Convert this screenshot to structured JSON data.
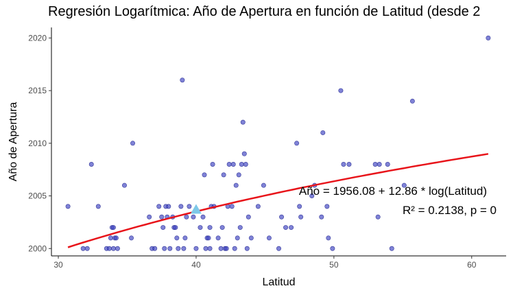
{
  "chart_data": {
    "type": "scatter",
    "title": "Regresión Logarítmica: Año de Apertura en función de Latitud (desde 2",
    "xlabel": "Latitud",
    "ylabel": "Año de Apertura",
    "xlim": [
      29.5,
      62.5
    ],
    "ylim": [
      1999.3,
      2021.0
    ],
    "x_ticks": [
      30,
      40,
      50,
      60
    ],
    "y_ticks": [
      2000,
      2005,
      2010,
      2015,
      2020
    ],
    "grid": false,
    "point_color": "#3A3FC0",
    "line_color": "#E8141A",
    "marker_color": "#7EC8E8",
    "points": [
      [
        30.7,
        2004
      ],
      [
        31.8,
        2000
      ],
      [
        32.1,
        2000
      ],
      [
        32.4,
        2008
      ],
      [
        32.9,
        2004
      ],
      [
        33.5,
        2000
      ],
      [
        33.7,
        2000
      ],
      [
        33.8,
        2001
      ],
      [
        33.9,
        2002
      ],
      [
        34.0,
        2002
      ],
      [
        34.0,
        2000
      ],
      [
        34.1,
        2001
      ],
      [
        34.2,
        2001
      ],
      [
        34.3,
        2000
      ],
      [
        34.8,
        2006
      ],
      [
        35.3,
        2001
      ],
      [
        35.4,
        2010
      ],
      [
        36.6,
        2003
      ],
      [
        36.8,
        2000
      ],
      [
        37.0,
        2000
      ],
      [
        37.3,
        2004
      ],
      [
        37.5,
        2003
      ],
      [
        37.6,
        2002
      ],
      [
        37.7,
        2000
      ],
      [
        37.8,
        2004
      ],
      [
        37.9,
        2003
      ],
      [
        38.0,
        2004
      ],
      [
        38.1,
        2000
      ],
      [
        38.3,
        2003
      ],
      [
        38.4,
        2002
      ],
      [
        38.5,
        2002
      ],
      [
        38.6,
        2001
      ],
      [
        38.7,
        2000
      ],
      [
        38.9,
        2004
      ],
      [
        39.0,
        2016
      ],
      [
        39.1,
        2000
      ],
      [
        39.2,
        2001
      ],
      [
        39.3,
        2003
      ],
      [
        39.5,
        2004
      ],
      [
        39.8,
        2003
      ],
      [
        40.0,
        2000
      ],
      [
        40.3,
        2002
      ],
      [
        40.5,
        2003
      ],
      [
        40.6,
        2007
      ],
      [
        40.7,
        2000
      ],
      [
        40.8,
        2001
      ],
      [
        40.9,
        2001
      ],
      [
        41.0,
        2000
      ],
      [
        41.0,
        2002
      ],
      [
        41.1,
        2004
      ],
      [
        41.2,
        2008
      ],
      [
        41.3,
        2004
      ],
      [
        41.6,
        2001
      ],
      [
        41.8,
        2000
      ],
      [
        41.9,
        2002
      ],
      [
        42.0,
        2007
      ],
      [
        42.1,
        2000
      ],
      [
        42.2,
        2000
      ],
      [
        42.3,
        2004
      ],
      [
        42.4,
        2008
      ],
      [
        42.6,
        2004
      ],
      [
        42.7,
        2008
      ],
      [
        42.8,
        2000
      ],
      [
        42.9,
        2006
      ],
      [
        43.0,
        2001
      ],
      [
        43.1,
        2007
      ],
      [
        43.2,
        2002
      ],
      [
        43.3,
        2008
      ],
      [
        43.4,
        2012
      ],
      [
        43.5,
        2009
      ],
      [
        43.6,
        2008
      ],
      [
        43.7,
        2000
      ],
      [
        43.8,
        2003
      ],
      [
        44.0,
        2001
      ],
      [
        44.5,
        2004
      ],
      [
        44.9,
        2006
      ],
      [
        45.3,
        2001
      ],
      [
        46.0,
        2000
      ],
      [
        46.2,
        2003
      ],
      [
        46.5,
        2002
      ],
      [
        46.9,
        2002
      ],
      [
        47.3,
        2010
      ],
      [
        47.5,
        2004
      ],
      [
        47.6,
        2003
      ],
      [
        48.4,
        2005
      ],
      [
        48.6,
        2006
      ],
      [
        49.1,
        2003
      ],
      [
        49.2,
        2011
      ],
      [
        49.5,
        2004
      ],
      [
        49.6,
        2001
      ],
      [
        49.9,
        2000
      ],
      [
        50.5,
        2015
      ],
      [
        50.7,
        2008
      ],
      [
        51.1,
        2008
      ],
      [
        53.0,
        2008
      ],
      [
        53.2,
        2003
      ],
      [
        53.3,
        2008
      ],
      [
        53.9,
        2008
      ],
      [
        54.2,
        2000
      ],
      [
        55.1,
        2006
      ],
      [
        55.7,
        2014
      ],
      [
        61.2,
        2020
      ]
    ],
    "regression": {
      "intercept": 1956.08,
      "slope": 12.86,
      "x_range": [
        30.7,
        61.2
      ]
    },
    "marker": {
      "x": 40.0,
      "y": 2003.7
    },
    "annotations": {
      "equation": "Año = 1956.08 + 12.86 * log(Latitud)",
      "stats": "R² = 0.2138, p = 0"
    }
  }
}
